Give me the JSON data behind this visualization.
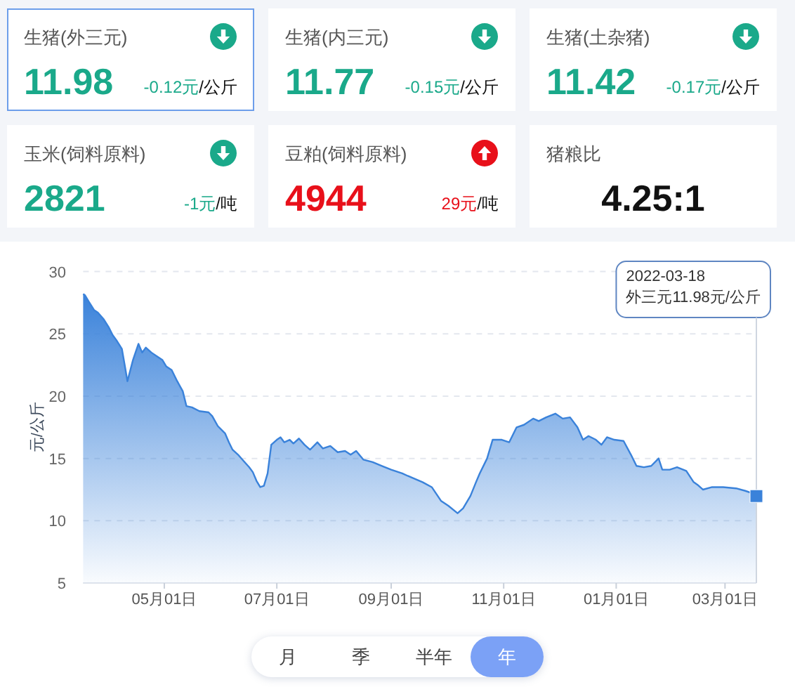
{
  "chart_data": [
    {
      "type": "other",
      "title": "生猪(外三元)",
      "annotations": [
        "11.98",
        "/公斤"
      ],
      "values": [
        -0.12
      ],
      "value_labels": [
        "-0.12元"
      ],
      "color": "#1aa98a"
    },
    {
      "type": "other",
      "title": "生猪(内三元)",
      "annotations": [
        "11.77",
        "/公斤"
      ],
      "values": [
        -0.15
      ],
      "value_labels": [
        "-0.15元"
      ],
      "color": "#1aa98a"
    },
    {
      "type": "other",
      "title": "生猪(土杂猪)",
      "annotations": [
        "11.42",
        "/公斤"
      ],
      "values": [
        -0.17
      ],
      "value_labels": [
        "-0.17元"
      ],
      "color": "#1aa98a"
    },
    {
      "type": "other",
      "title": "玉米(饲料原料)",
      "annotations": [
        "2821",
        "/吨"
      ],
      "values": [
        -1
      ],
      "value_labels": [
        "-1元"
      ],
      "color": "#1aa98a"
    },
    {
      "type": "other",
      "title": "豆粕(饲料原料)",
      "annotations": [
        "4944",
        "/吨"
      ],
      "values": [
        29
      ],
      "value_labels": [
        "29元"
      ],
      "color": "#e8101a"
    },
    {
      "type": "other",
      "title": "猪粮比",
      "annotations": [
        "4.25:1"
      ]
    },
    {
      "type": "area",
      "ylabel": "元/公斤",
      "xlim": [
        "2021-03-18",
        "2022-03-18"
      ],
      "xticks": [
        {
          "value": "2021-05-01",
          "label": "05月01日"
        },
        {
          "value": "2021-07-01",
          "label": "07月01日"
        },
        {
          "value": "2021-09-01",
          "label": "09月01日"
        },
        {
          "value": "2021-11-01",
          "label": "11月01日"
        },
        {
          "value": "2022-01-01",
          "label": "01月01日"
        },
        {
          "value": "2022-03-01",
          "label": "03月01日"
        }
      ],
      "ylim": [
        5,
        30
      ],
      "yticks": [
        5,
        10,
        15,
        20,
        25,
        30
      ],
      "grid": "y",
      "x": [
        "2021-03-18",
        "2021-03-19",
        "2021-03-21",
        "2021-03-24",
        "2021-03-26",
        "2021-03-29",
        "2021-04-01",
        "2021-04-03",
        "2021-04-05",
        "2021-04-08",
        "2021-04-10",
        "2021-04-11",
        "2021-04-14",
        "2021-04-17",
        "2021-04-19",
        "2021-04-21",
        "2021-04-24",
        "2021-04-27",
        "2021-04-30",
        "2021-05-02",
        "2021-05-05",
        "2021-05-08",
        "2021-05-11",
        "2021-05-13",
        "2021-05-16",
        "2021-05-20",
        "2021-05-25",
        "2021-05-27",
        "2021-05-30",
        "2021-06-03",
        "2021-06-05",
        "2021-06-07",
        "2021-06-10",
        "2021-06-13",
        "2021-06-16",
        "2021-06-18",
        "2021-06-20",
        "2021-06-22",
        "2021-06-24",
        "2021-06-26",
        "2021-06-28",
        "2021-07-01",
        "2021-07-03",
        "2021-07-05",
        "2021-07-08",
        "2021-07-10",
        "2021-07-13",
        "2021-07-16",
        "2021-07-19",
        "2021-07-23",
        "2021-07-26",
        "2021-07-30",
        "2021-08-03",
        "2021-08-07",
        "2021-08-10",
        "2021-08-13",
        "2021-08-17",
        "2021-08-22",
        "2021-08-27",
        "2021-09-01",
        "2021-09-07",
        "2021-09-10",
        "2021-09-18",
        "2021-09-23",
        "2021-09-28",
        "2021-10-02",
        "2021-10-07",
        "2021-10-10",
        "2021-10-14",
        "2021-10-17",
        "2021-10-19",
        "2021-10-23",
        "2021-10-26",
        "2021-10-31",
        "2021-11-04",
        "2021-11-08",
        "2021-11-12",
        "2021-11-17",
        "2021-11-20",
        "2021-11-24",
        "2021-11-29",
        "2021-12-03",
        "2021-12-07",
        "2021-12-11",
        "2021-12-14",
        "2021-12-17",
        "2021-12-21",
        "2021-12-24",
        "2021-12-27",
        "2021-12-31",
        "2022-01-05",
        "2022-01-09",
        "2022-01-12",
        "2022-01-16",
        "2022-01-20",
        "2022-01-24",
        "2022-01-26",
        "2022-01-30",
        "2022-02-03",
        "2022-02-08",
        "2022-02-12",
        "2022-02-14",
        "2022-02-17",
        "2022-02-22",
        "2022-02-28",
        "2022-03-07",
        "2022-03-12",
        "2022-03-16",
        "2022-03-18"
      ],
      "series": [
        {
          "color": "#3a82da",
          "values": [
            28.2,
            28.1,
            27.6,
            26.9,
            26.7,
            26.2,
            25.5,
            24.9,
            24.5,
            23.8,
            22.1,
            21.2,
            22.9,
            24.2,
            23.5,
            23.9,
            23.5,
            23.2,
            22.9,
            22.4,
            22.1,
            21.2,
            20.4,
            19.2,
            19.1,
            18.8,
            18.7,
            18.4,
            17.6,
            17.0,
            16.3,
            15.7,
            15.3,
            14.8,
            14.3,
            13.9,
            13.2,
            12.7,
            12.8,
            13.8,
            16.1,
            16.5,
            16.7,
            16.3,
            16.5,
            16.2,
            16.6,
            16.1,
            15.7,
            16.3,
            15.8,
            16.0,
            15.5,
            15.6,
            15.3,
            15.6,
            14.9,
            14.7,
            14.4,
            14.1,
            13.8,
            13.6,
            13.1,
            12.7,
            11.6,
            11.2,
            10.6,
            11.0,
            12.0,
            13.1,
            13.8,
            15.0,
            16.5,
            16.5,
            16.3,
            17.5,
            17.7,
            18.2,
            18.0,
            18.3,
            18.6,
            18.2,
            18.3,
            17.5,
            16.5,
            16.8,
            16.5,
            16.1,
            16.7,
            16.5,
            16.4,
            15.3,
            14.4,
            14.3,
            14.4,
            15.0,
            14.1,
            14.1,
            14.3,
            14.0,
            13.1,
            12.9,
            12.5,
            12.7,
            12.7,
            12.6,
            12.4,
            12.2,
            11.98
          ]
        }
      ],
      "annotations": [
        {
          "text": "2022-03-18\n外三元11.98元/公斤",
          "x": "2022-03-18",
          "y": 11.98
        }
      ]
    },
    {
      "type": "other",
      "annotations": [
        "月",
        "季",
        "半年",
        "年"
      ]
    }
  ]
}
